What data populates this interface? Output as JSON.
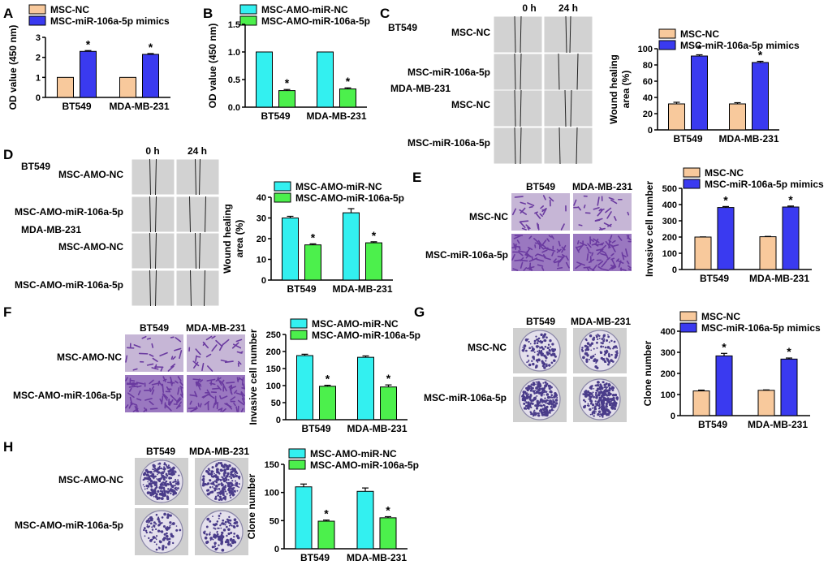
{
  "colors": {
    "nc": "#f8c99c",
    "mimic": "#3a3af0",
    "amo_nc": "#33f0f0",
    "amo_106": "#4cf04c",
    "wound_bg": "#d2d2d2",
    "transwell_bg": "#c6b6d6",
    "transwell_dense": "#6a3aa0",
    "plate_bg": "#e4e0ec",
    "plate_colony": "#4a3c8a"
  },
  "panels": {
    "A": "A",
    "B": "B",
    "C": "C",
    "D": "D",
    "E": "E",
    "F": "F",
    "G": "G",
    "H": "H"
  },
  "images": {
    "C": {
      "col_headers": [
        "0 h",
        "24 h"
      ],
      "groups": [
        "BT549",
        "MDA-MB-231"
      ],
      "rows": [
        "MSC-NC",
        "MSC-miR-106a-5p",
        "MSC-NC",
        "MSC-miR-106a-5p"
      ]
    },
    "D": {
      "col_headers": [
        "0 h",
        "24 h"
      ],
      "groups": [
        "BT549",
        "MDA-MB-231"
      ],
      "rows": [
        "MSC-AMO-NC",
        "MSC-AMO-miR-106a-5p",
        "MSC-AMO-NC",
        "MSC-AMO-miR-106a-5p"
      ]
    },
    "E": {
      "col_headers": [
        "BT549",
        "MDA-MB-231"
      ],
      "rows": [
        "MSC-NC",
        "MSC-miR-106a-5p"
      ]
    },
    "F": {
      "col_headers": [
        "BT549",
        "MDA-MB-231"
      ],
      "rows": [
        "MSC-AMO-NC",
        "MSC-AMO-miR-106a-5p"
      ]
    },
    "G": {
      "col_headers": [
        "BT549",
        "MDA-MB-231"
      ],
      "rows": [
        "MSC-NC",
        "MSC-miR-106a-5p"
      ]
    },
    "H": {
      "col_headers": [
        "BT549",
        "MDA-MB-231"
      ],
      "rows": [
        "MSC-AMO-NC",
        "MSC-AMO-miR-106a-5p"
      ]
    }
  },
  "chart_data": [
    {
      "id": "A",
      "type": "bar",
      "categories": [
        "BT549",
        "MDA-MB-231"
      ],
      "series": [
        {
          "name": "MSC-NC",
          "values": [
            1.0,
            1.0
          ],
          "errors": [
            0,
            0
          ]
        },
        {
          "name": "MSC-miR-106a-5p mimics",
          "values": [
            2.3,
            2.15
          ],
          "errors": [
            0.04,
            0.04
          ]
        }
      ],
      "ylabel": "OD value (450 nm)",
      "ylim": [
        0,
        3
      ],
      "yticks": [
        "0",
        "1",
        "2",
        "3"
      ],
      "annotations": [
        "*",
        "*"
      ]
    },
    {
      "id": "B",
      "type": "bar",
      "categories": [
        "BT549",
        "MDA-MB-231"
      ],
      "series": [
        {
          "name": "MSC-AMO-miR-NC",
          "values": [
            1.0,
            1.0
          ],
          "errors": [
            0,
            0
          ]
        },
        {
          "name": "MSC-AMO-miR-106a-5p",
          "values": [
            0.3,
            0.33
          ],
          "errors": [
            0.02,
            0.02
          ]
        }
      ],
      "ylabel": "OD value (450 nm)",
      "ylim": [
        0,
        1.5
      ],
      "yticks": [
        "0.0",
        "0.5",
        "1.0",
        "1.5"
      ],
      "annotations": [
        "*",
        "*"
      ]
    },
    {
      "id": "C",
      "type": "bar",
      "categories": [
        "BT549",
        "MDA-MB-231"
      ],
      "series": [
        {
          "name": "MSC-NC",
          "values": [
            32,
            32
          ],
          "errors": [
            2,
            1.5
          ]
        },
        {
          "name": "MSC-miR-106a-5p mimics",
          "values": [
            91,
            83
          ],
          "errors": [
            1.5,
            1.5
          ]
        }
      ],
      "ylabel": "Wound healing area (%)",
      "ylim": [
        0,
        100
      ],
      "yticks": [
        "0",
        "20",
        "40",
        "60",
        "80",
        "100"
      ],
      "annotations": [
        "*",
        "*"
      ]
    },
    {
      "id": "D",
      "type": "bar",
      "categories": [
        "BT549",
        "MDA-MB-231"
      ],
      "series": [
        {
          "name": "MSC-AMO-miR-NC",
          "values": [
            30,
            32.5
          ],
          "errors": [
            0.8,
            2
          ]
        },
        {
          "name": "MSC-AMO-miR-106a-5p",
          "values": [
            17,
            18
          ],
          "errors": [
            0.5,
            0.5
          ]
        }
      ],
      "ylabel": "Wound healing area (%)",
      "ylim": [
        0,
        40
      ],
      "yticks": [
        "0",
        "10",
        "20",
        "30",
        "40"
      ],
      "annotations": [
        "*",
        "*"
      ]
    },
    {
      "id": "E",
      "type": "bar",
      "categories": [
        "BT549",
        "MDA-MB-231"
      ],
      "series": [
        {
          "name": "MSC-NC",
          "values": [
            200,
            202
          ],
          "errors": [
            1,
            2
          ]
        },
        {
          "name": "MSC-miR-106a-5p mimics",
          "values": [
            382,
            385
          ],
          "errors": [
            6,
            6
          ]
        }
      ],
      "ylabel": "Invasive cell number",
      "ylim": [
        0,
        500
      ],
      "yticks": [
        "0",
        "100",
        "200",
        "300",
        "400",
        "500"
      ],
      "annotations": [
        "*",
        "*"
      ]
    },
    {
      "id": "F",
      "type": "bar",
      "categories": [
        "BT549",
        "MDA-MB-231"
      ],
      "series": [
        {
          "name": "MSC-AMO-miR-NC",
          "values": [
            188,
            183
          ],
          "errors": [
            4,
            4
          ]
        },
        {
          "name": "MSC-AMO-miR-106a-5p",
          "values": [
            98,
            96
          ],
          "errors": [
            3,
            6
          ]
        }
      ],
      "ylabel": "Invasive cell number",
      "ylim": [
        0,
        250
      ],
      "yticks": [
        "0",
        "50",
        "100",
        "150",
        "200",
        "250"
      ],
      "annotations": [
        "*",
        "*"
      ]
    },
    {
      "id": "G",
      "type": "bar",
      "categories": [
        "BT549",
        "MDA-MB-231"
      ],
      "series": [
        {
          "name": "MSC-NC",
          "values": [
            117,
            120
          ],
          "errors": [
            4,
            2
          ]
        },
        {
          "name": "MSC-miR-106a-5p mimics",
          "values": [
            283,
            268
          ],
          "errors": [
            12,
            5
          ]
        }
      ],
      "ylabel": "Clone number",
      "ylim": [
        0,
        400
      ],
      "yticks": [
        "0",
        "100",
        "200",
        "300",
        "400"
      ],
      "annotations": [
        "*",
        "*"
      ]
    },
    {
      "id": "H",
      "type": "bar",
      "categories": [
        "BT549",
        "MDA-MB-231"
      ],
      "series": [
        {
          "name": "MSC-AMO-miR-NC",
          "values": [
            110,
            102
          ],
          "errors": [
            5,
            6
          ]
        },
        {
          "name": "MSC-AMO-miR-106a-5p",
          "values": [
            49,
            55
          ],
          "errors": [
            2,
            2
          ]
        }
      ],
      "ylabel": "Clone number",
      "ylim": [
        0,
        150
      ],
      "yticks": [
        "0",
        "50",
        "100",
        "150"
      ],
      "annotations": [
        "*",
        "*"
      ]
    }
  ]
}
